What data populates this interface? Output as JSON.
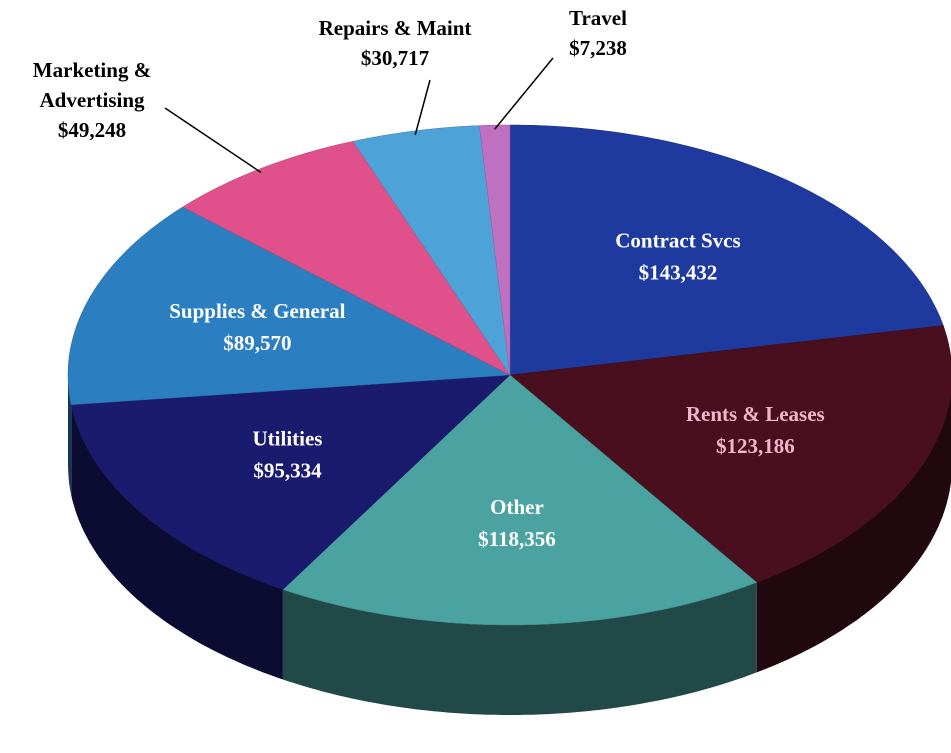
{
  "chart_data": {
    "type": "pie",
    "categories": [
      "Contract Svcs",
      "Rents & Leases",
      "Other",
      "Utilities",
      "Supplies & General",
      "Marketing & Advertising",
      "Repairs & Maint",
      "Travel"
    ],
    "values": [
      143432,
      123186,
      118356,
      95334,
      89570,
      49248,
      30717,
      7238
    ],
    "value_labels": [
      "$143,432",
      "$123,186",
      "$118,356",
      "$95,334",
      "$89,570",
      "$49,248",
      "$30,717",
      "$7,238"
    ],
    "colors": [
      "#1f3a9e",
      "#4a0f1e",
      "#4aa3a0",
      "#1a1a6e",
      "#2b7fc1",
      "#e0508a",
      "#4da3d8",
      "#c070c0"
    ],
    "label_colors": [
      "#ffffff",
      "#f2b6cc",
      "#ffffff",
      "#ffffff",
      "#ffffff",
      "#000000",
      "#000000",
      "#000000"
    ]
  }
}
